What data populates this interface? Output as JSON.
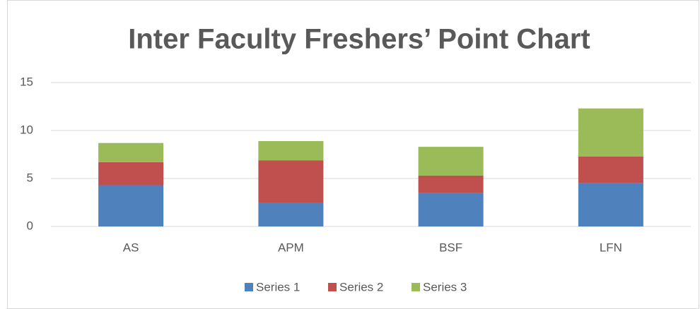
{
  "chart_data": {
    "type": "stacked_bar",
    "title": "Inter Faculty Freshers’ Point Chart",
    "categories": [
      "AS",
      "APM",
      "BSF",
      "LFN"
    ],
    "series": [
      {
        "name": "Series 1",
        "color": "#4f81bd",
        "values": [
          4.3,
          2.5,
          3.5,
          4.5
        ]
      },
      {
        "name": "Series 2",
        "color": "#c0504d",
        "values": [
          2.4,
          4.4,
          1.8,
          2.8
        ]
      },
      {
        "name": "Series 3",
        "color": "#9bbb59",
        "values": [
          2.0,
          2.0,
          3.0,
          5.0
        ]
      }
    ],
    "ylim": [
      0,
      15
    ],
    "yticks": [
      0,
      5,
      10,
      15
    ],
    "grid": true,
    "legend": "bottom"
  }
}
